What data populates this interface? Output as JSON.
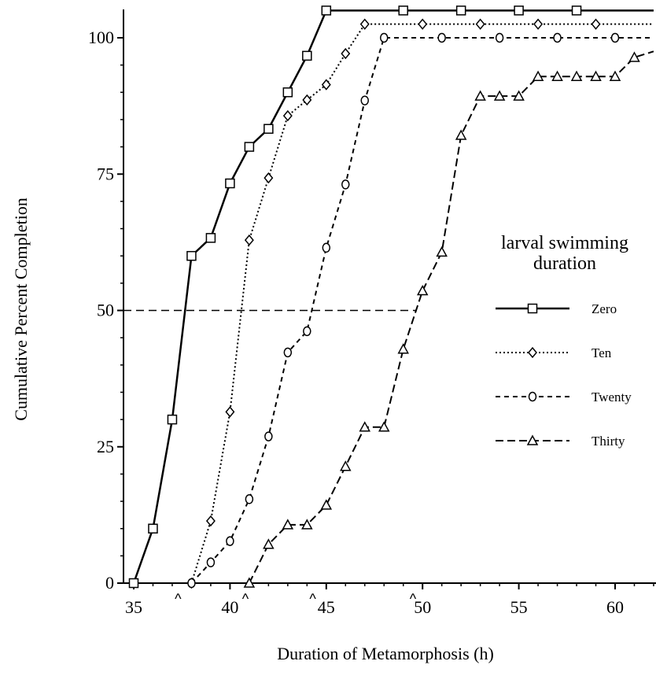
{
  "chart_data": {
    "type": "line",
    "title": "",
    "xlabel": "Duration of Metamorphosis (h)",
    "ylabel": "Cumulative Percent Completion",
    "xlim": [
      34.5,
      62
    ],
    "ylim": [
      0,
      105
    ],
    "xticks": [
      35,
      40,
      45,
      50,
      55,
      60
    ],
    "yticks": [
      0,
      25,
      50,
      75,
      100
    ],
    "grid": false,
    "legend": {
      "title_line1": "larval swimming",
      "title_line2": "duration",
      "placement": "right-middle"
    },
    "reference_line": {
      "y": 50,
      "x_range": [
        34.5,
        49.7
      ],
      "style": "dashed"
    },
    "median_markers": {
      "symbol": "^",
      "x": [
        37.3,
        40.8,
        44.3,
        49.5
      ]
    },
    "series": [
      {
        "name": "Zero",
        "marker": "square",
        "line_style": "solid",
        "x": [
          35,
          36,
          37,
          38,
          39,
          40,
          41,
          42,
          43,
          44,
          45,
          49,
          52,
          55,
          58,
          62
        ],
        "y": [
          0,
          10,
          30,
          60,
          63.3,
          73.3,
          80,
          83.3,
          90,
          96.7,
          105,
          105,
          105,
          105,
          105,
          105
        ]
      },
      {
        "name": "Ten",
        "marker": "diamond",
        "line_style": "dotted",
        "x": [
          38,
          39,
          40,
          41,
          42,
          43,
          44,
          45,
          46,
          47,
          50,
          53,
          56,
          59,
          62
        ],
        "y": [
          0,
          11.4,
          31.4,
          62.9,
          74.3,
          85.7,
          88.6,
          91.4,
          97.1,
          102.5,
          102.5,
          102.5,
          102.5,
          102.5,
          102.5
        ]
      },
      {
        "name": "Twenty",
        "marker": "circle",
        "line_style": "dashed",
        "x": [
          38,
          39,
          40,
          41,
          42,
          43,
          44,
          45,
          46,
          47,
          48,
          51,
          54,
          57,
          60,
          62
        ],
        "y": [
          0,
          3.8,
          7.7,
          15.4,
          26.9,
          42.3,
          46.2,
          61.5,
          73.1,
          88.5,
          100,
          100,
          100,
          100,
          100,
          100
        ]
      },
      {
        "name": "Thirty",
        "marker": "triangle",
        "line_style": "long-dashed",
        "x": [
          41,
          42,
          43,
          44,
          45,
          46,
          47,
          48,
          49,
          50,
          51,
          52,
          53,
          54,
          55,
          56,
          57,
          58,
          59,
          60,
          61,
          62
        ],
        "y": [
          0,
          7.1,
          10.7,
          10.7,
          14.3,
          21.4,
          28.6,
          28.6,
          42.9,
          53.6,
          60.7,
          82.1,
          89.3,
          89.3,
          89.3,
          92.9,
          92.9,
          92.9,
          92.9,
          92.9,
          96.4,
          97.5
        ]
      }
    ]
  }
}
